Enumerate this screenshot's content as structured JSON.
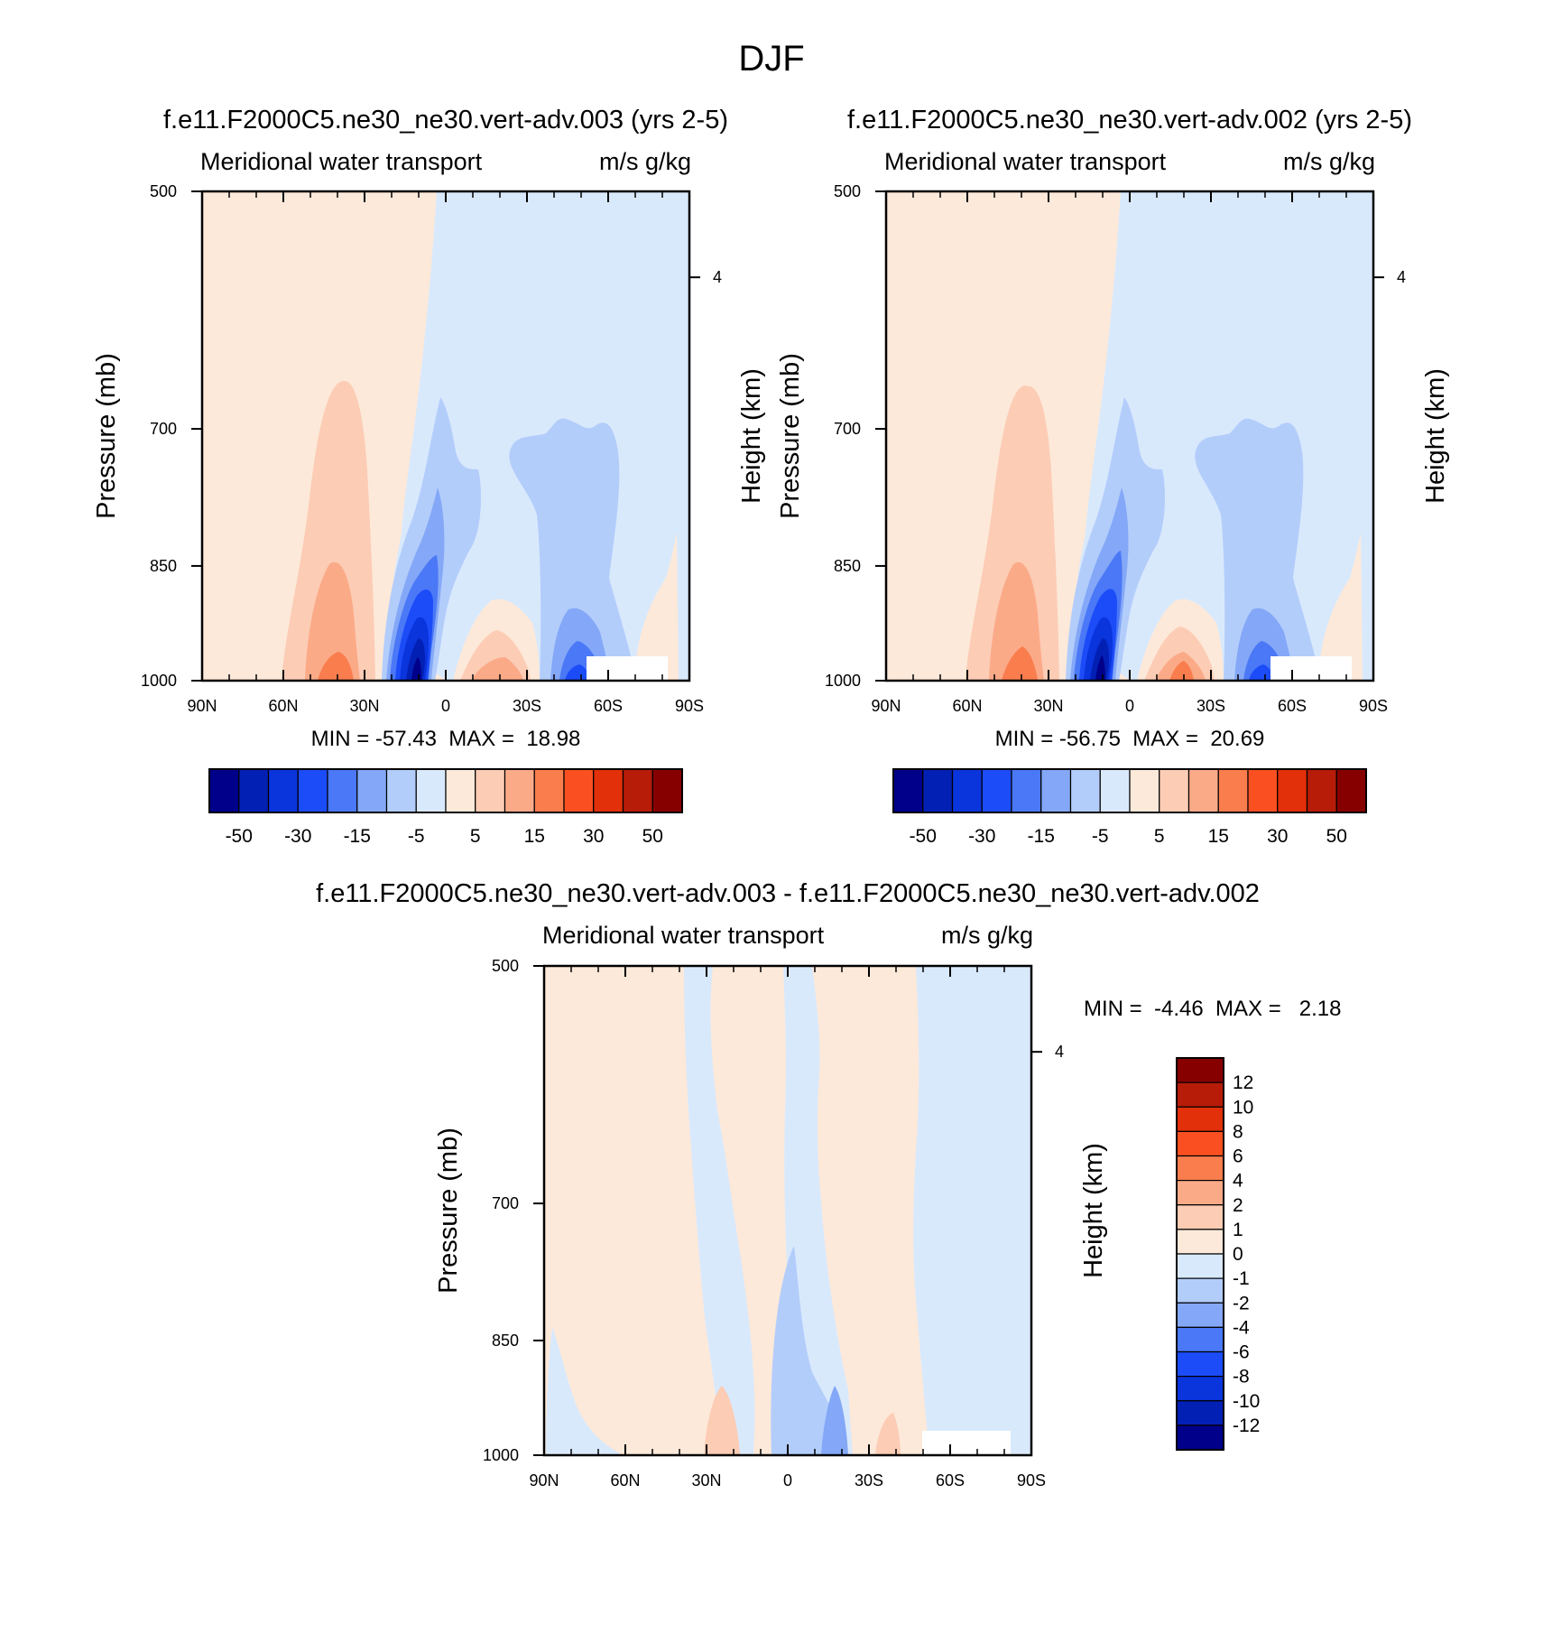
{
  "figure_title": "DJF",
  "chart_data": [
    {
      "type": "heatmap",
      "id": "p1",
      "title": "f.e11.F2000C5.ne30_ne30.vert-adv.003 (yrs 2-5)",
      "left_string": "Meridional water transport",
      "right_string": "m/s g/kg",
      "xlabel": "",
      "ylabel": "Pressure (mb)",
      "ylabel_right": "Height (km)",
      "x_ticks": [
        "90N",
        "60N",
        "30N",
        "0",
        "30S",
        "60S",
        "90S"
      ],
      "x_range": [
        90,
        -90
      ],
      "y_ticks": [
        "500",
        "700",
        "850",
        "1000"
      ],
      "y_range": [
        500,
        1000
      ],
      "right_ticks": [
        "4"
      ],
      "min_max_text": "MIN = -57.43  MAX =  18.98",
      "min": -57.43,
      "max": 18.98,
      "levels": [
        -50,
        -40,
        -30,
        -20,
        -15,
        -10,
        -5,
        0,
        5,
        10,
        15,
        20,
        30,
        40,
        50
      ],
      "colorbar_labels": [
        "-50",
        "-30",
        "-15",
        "-5",
        "5",
        "15",
        "30",
        "50"
      ]
    },
    {
      "type": "heatmap",
      "id": "p2",
      "title": "f.e11.F2000C5.ne30_ne30.vert-adv.002 (yrs 2-5)",
      "left_string": "Meridional water transport",
      "right_string": "m/s g/kg",
      "xlabel": "",
      "ylabel": "Pressure (mb)",
      "ylabel_right": "Height (km)",
      "x_ticks": [
        "90N",
        "60N",
        "30N",
        "0",
        "30S",
        "60S",
        "90S"
      ],
      "x_range": [
        90,
        -90
      ],
      "y_ticks": [
        "500",
        "700",
        "850",
        "1000"
      ],
      "y_range": [
        500,
        1000
      ],
      "right_ticks": [
        "4"
      ],
      "min_max_text": "MIN = -56.75  MAX =  20.69",
      "min": -56.75,
      "max": 20.69,
      "levels": [
        -50,
        -40,
        -30,
        -20,
        -15,
        -10,
        -5,
        0,
        5,
        10,
        15,
        20,
        30,
        40,
        50
      ],
      "colorbar_labels": [
        "-50",
        "-30",
        "-15",
        "-5",
        "5",
        "15",
        "30",
        "50"
      ]
    },
    {
      "type": "heatmap",
      "id": "p3",
      "title": "f.e11.F2000C5.ne30_ne30.vert-adv.003 - f.e11.F2000C5.ne30_ne30.vert-adv.002",
      "left_string": "Meridional water transport",
      "right_string": "m/s g/kg",
      "xlabel": "",
      "ylabel": "Pressure (mb)",
      "ylabel_right": "Height (km)",
      "x_ticks": [
        "90N",
        "60N",
        "30N",
        "0",
        "30S",
        "60S",
        "90S"
      ],
      "x_range": [
        90,
        -90
      ],
      "y_ticks": [
        "500",
        "700",
        "850",
        "1000"
      ],
      "y_range": [
        500,
        1000
      ],
      "right_ticks": [
        "4"
      ],
      "min_max_text": "MIN =  -4.46  MAX =   2.18",
      "min": -4.46,
      "max": 2.18,
      "levels": [
        -12,
        -10,
        -8,
        -6,
        -4,
        -2,
        -1,
        0,
        1,
        2,
        4,
        6,
        8,
        10,
        12
      ],
      "colorbar_labels": [
        "12",
        "10",
        "8",
        "6",
        "4",
        "2",
        "1",
        "0",
        "-1",
        "-2",
        "-4",
        "-6",
        "-8",
        "-10",
        "-12"
      ]
    }
  ],
  "colors": {
    "palette": [
      "#00008a",
      "#0320b5",
      "#0a34dc",
      "#1c4cf8",
      "#4a78f6",
      "#84a8f7",
      "#b3cdfb",
      "#d9e9fc",
      "#fde9d9",
      "#fcccb5",
      "#fbaa88",
      "#fa7d4e",
      "#fa5021",
      "#e1300a",
      "#b71c08",
      "#870000"
    ]
  }
}
